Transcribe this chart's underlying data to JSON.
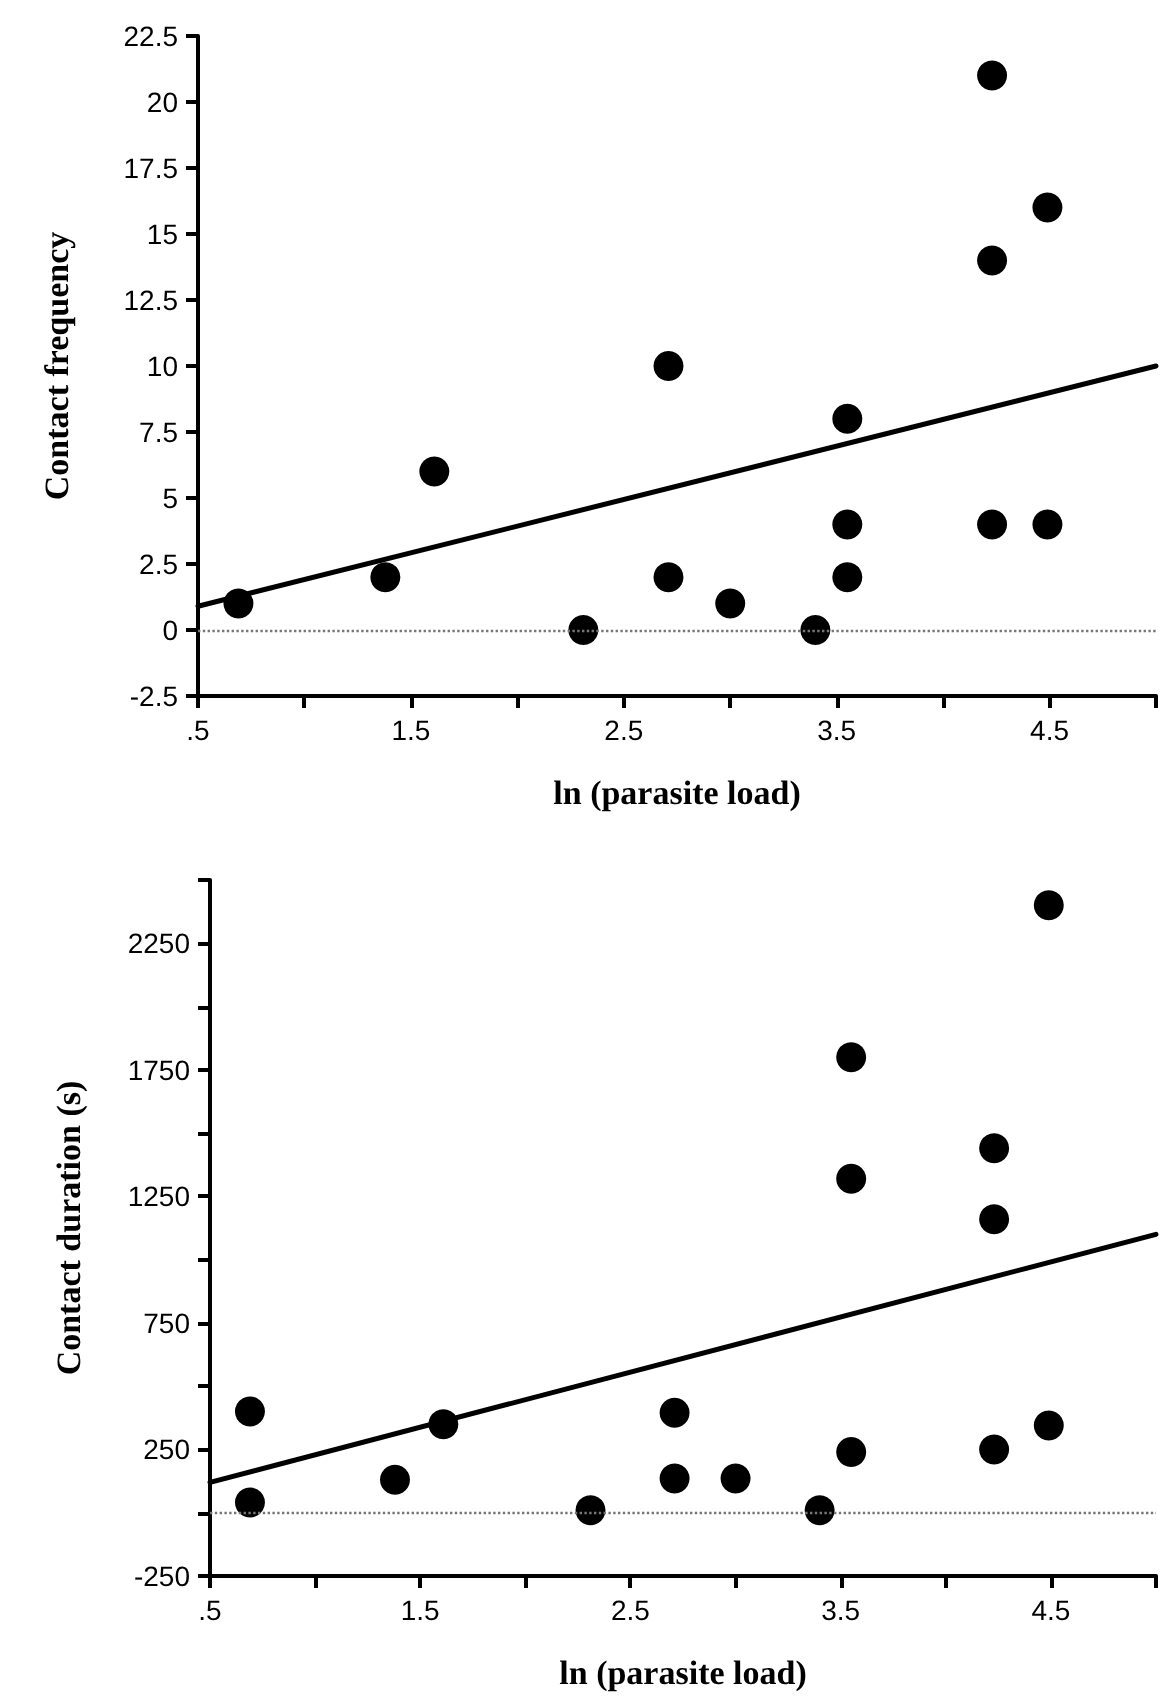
{
  "chart_data": [
    {
      "type": "scatter",
      "xlabel": "ln (parasite load)",
      "ylabel": "Contact frequency",
      "marker": "circle",
      "xlim": [
        0.5,
        5
      ],
      "xticks": [
        {
          "value": 0.5,
          "label": ".5"
        },
        {
          "value": 1,
          "label": null
        },
        1.5,
        {
          "value": 2,
          "label": null
        },
        2.5,
        {
          "value": 3,
          "label": null
        },
        3.5,
        {
          "value": 4,
          "label": null
        },
        4.5,
        {
          "value": 5,
          "label": null
        }
      ],
      "ylim": [
        -2.5,
        22.5
      ],
      "yticks": [
        -2.5,
        0,
        2.5,
        5,
        7.5,
        10,
        12.5,
        15,
        17.5,
        20,
        22.5
      ],
      "ref_lines": [
        {
          "axis": "y",
          "value": 0,
          "color": "#777777",
          "line_style": "dotted"
        }
      ],
      "series": [
        {
          "color": "#000000",
          "x": [
            0.69,
            1.38,
            1.61,
            2.31,
            2.71,
            2.71,
            3.0,
            3.4,
            3.55,
            3.55,
            3.55,
            4.23,
            4.23,
            4.23,
            4.49,
            4.49
          ],
          "values": [
            1,
            2,
            6,
            0,
            10,
            2,
            1,
            0,
            8,
            4,
            2,
            21,
            14,
            4,
            16,
            4
          ]
        },
        {
          "type": "line",
          "color": "#000000",
          "marker": "none",
          "line_style": "solid",
          "x": [
            0.5,
            5
          ],
          "values": [
            0.9,
            10
          ]
        }
      ]
    },
    {
      "type": "scatter",
      "xlabel": "ln (parasite load)",
      "ylabel": "Contact duration (s)",
      "marker": "circle",
      "xlim": [
        0.5,
        5
      ],
      "xticks": [
        {
          "value": 0.5,
          "label": ".5"
        },
        {
          "value": 1,
          "label": null
        },
        1.5,
        {
          "value": 2,
          "label": null
        },
        2.5,
        {
          "value": 3,
          "label": null
        },
        3.5,
        {
          "value": 4,
          "label": null
        },
        4.5,
        {
          "value": 5,
          "label": null
        }
      ],
      "ylim": [
        -250,
        2500
      ],
      "yticks": [
        -250,
        {
          "value": 0,
          "label": null
        },
        250,
        {
          "value": 500,
          "label": null
        },
        750,
        {
          "value": 1000,
          "label": null
        },
        1250,
        {
          "value": 1500,
          "label": null
        },
        1750,
        {
          "value": 2000,
          "label": null
        },
        2250,
        {
          "value": 2500,
          "label": null
        }
      ],
      "ref_lines": [
        {
          "axis": "y",
          "value": 0,
          "color": "#777777",
          "line_style": "dotted"
        }
      ],
      "series": [
        {
          "color": "#000000",
          "x": [
            0.69,
            0.69,
            1.38,
            1.61,
            2.31,
            2.71,
            2.71,
            3.0,
            3.4,
            3.55,
            3.55,
            3.55,
            4.23,
            4.23,
            4.23,
            4.49,
            4.49
          ],
          "values": [
            400,
            40,
            130,
            350,
            10,
            395,
            135,
            135,
            10,
            1800,
            1320,
            240,
            1440,
            1160,
            250,
            2400,
            345
          ]
        },
        {
          "type": "line",
          "color": "#000000",
          "marker": "none",
          "line_style": "solid",
          "x": [
            0.5,
            5
          ],
          "values": [
            120,
            1100
          ]
        }
      ]
    }
  ]
}
